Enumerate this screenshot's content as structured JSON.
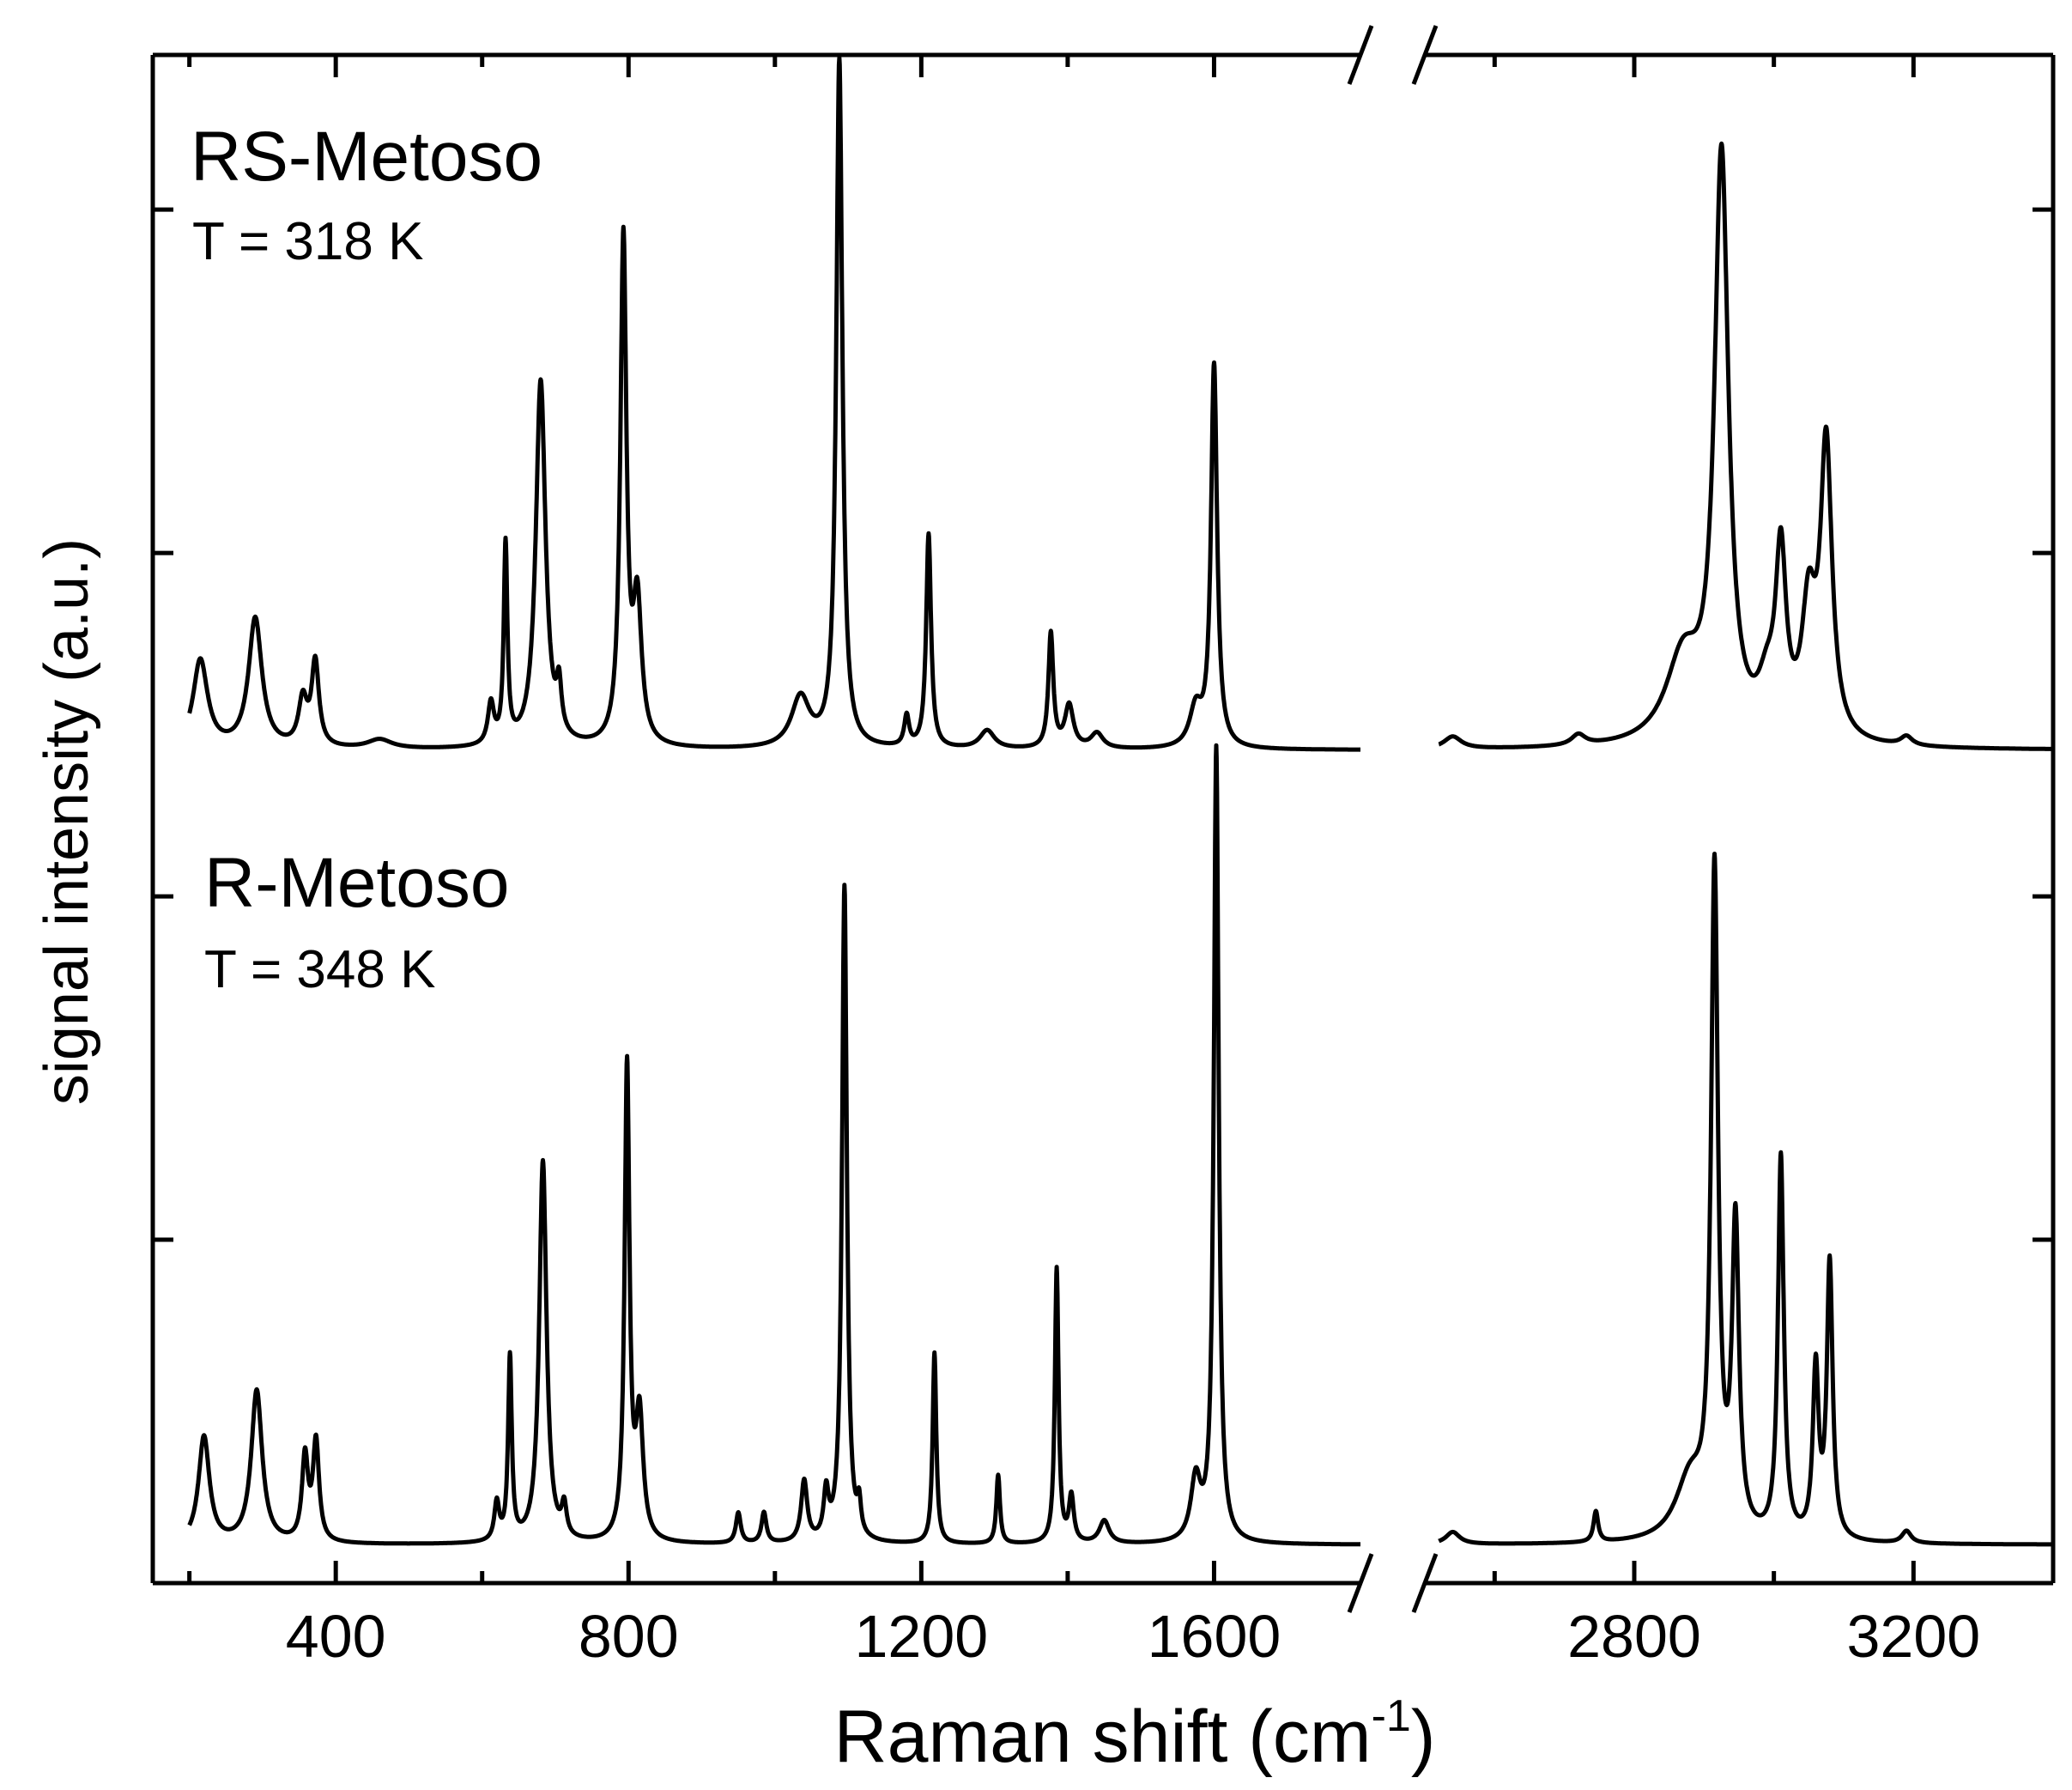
{
  "chart_data": {
    "type": "line",
    "xlabel": "Raman shift (cm",
    "xlabel_sup": "-1",
    "xlabel_end": ")",
    "ylabel": "signal intensity (a.u.)",
    "x_axis": {
      "broken": true,
      "segments": [
        {
          "xlim": [
            150,
            1800
          ]
        },
        {
          "xlim": [
            2500,
            3400
          ]
        }
      ],
      "ticks": [
        {
          "value": 400,
          "label": "400"
        },
        {
          "value": 800,
          "label": "800"
        },
        {
          "value": 1200,
          "label": "1200"
        },
        {
          "value": 1600,
          "label": "1600"
        },
        {
          "value": 2800,
          "label": "2800"
        },
        {
          "value": 3200,
          "label": "3200"
        }
      ],
      "minor_ticks": [
        200,
        600,
        1000,
        1400,
        2600,
        3000,
        3400
      ]
    },
    "y_axis": {
      "ylim": [
        0,
        1.0
      ],
      "ticks_shown": true,
      "tick_labels_shown": false
    },
    "grid": false,
    "legend": "none",
    "line_color": "#000000",
    "panel_labels": [
      {
        "name": "RS-Metoso",
        "temperature": "T = 318 K"
      },
      {
        "name": "R-Metoso",
        "temperature": "T = 348 K"
      }
    ],
    "series": [
      {
        "name": "RS-Metoso",
        "baseline": 0.545,
        "peaks": [
          {
            "x": 215,
            "h": 0.058,
            "w": 12
          },
          {
            "x": 290,
            "h": 0.085,
            "w": 11
          },
          {
            "x": 355,
            "h": 0.03,
            "w": 7
          },
          {
            "x": 372,
            "h": 0.055,
            "w": 6
          },
          {
            "x": 460,
            "h": 0.006,
            "w": 20
          },
          {
            "x": 612,
            "h": 0.027,
            "w": 5
          },
          {
            "x": 632,
            "h": 0.13,
            "w": 3
          },
          {
            "x": 680,
            "h": 0.24,
            "w": 8
          },
          {
            "x": 705,
            "h": 0.03,
            "w": 4
          },
          {
            "x": 793,
            "h": 0.33,
            "w": 5
          },
          {
            "x": 812,
            "h": 0.09,
            "w": 7
          },
          {
            "x": 1035,
            "h": 0.033,
            "w": 15
          },
          {
            "x": 1088,
            "h": 0.45,
            "w": 5
          },
          {
            "x": 1180,
            "h": 0.02,
            "w": 4
          },
          {
            "x": 1210,
            "h": 0.14,
            "w": 4
          },
          {
            "x": 1290,
            "h": 0.012,
            "w": 12
          },
          {
            "x": 1377,
            "h": 0.075,
            "w": 4
          },
          {
            "x": 1402,
            "h": 0.028,
            "w": 7
          },
          {
            "x": 1440,
            "h": 0.01,
            "w": 10
          },
          {
            "x": 1575,
            "h": 0.025,
            "w": 10
          },
          {
            "x": 1600,
            "h": 0.25,
            "w": 5
          },
          {
            "x": 2540,
            "h": 0.008,
            "w": 15
          },
          {
            "x": 2720,
            "h": 0.007,
            "w": 12
          },
          {
            "x": 2870,
            "h": 0.055,
            "w": 30
          },
          {
            "x": 2925,
            "h": 0.38,
            "w": 12
          },
          {
            "x": 2990,
            "h": 0.028,
            "w": 15
          },
          {
            "x": 3010,
            "h": 0.115,
            "w": 9
          },
          {
            "x": 3050,
            "h": 0.08,
            "w": 12
          },
          {
            "x": 3075,
            "h": 0.19,
            "w": 10
          },
          {
            "x": 3190,
            "h": 0.006,
            "w": 10
          }
        ]
      },
      {
        "name": "R-Metoso",
        "baseline": 0.025,
        "peaks": [
          {
            "x": 220,
            "h": 0.07,
            "w": 9
          },
          {
            "x": 292,
            "h": 0.1,
            "w": 9
          },
          {
            "x": 358,
            "h": 0.055,
            "w": 5
          },
          {
            "x": 373,
            "h": 0.065,
            "w": 5
          },
          {
            "x": 620,
            "h": 0.025,
            "w": 4
          },
          {
            "x": 638,
            "h": 0.12,
            "w": 3
          },
          {
            "x": 683,
            "h": 0.25,
            "w": 6
          },
          {
            "x": 712,
            "h": 0.02,
            "w": 4
          },
          {
            "x": 798,
            "h": 0.31,
            "w": 4
          },
          {
            "x": 815,
            "h": 0.08,
            "w": 6
          },
          {
            "x": 950,
            "h": 0.02,
            "w": 4
          },
          {
            "x": 985,
            "h": 0.02,
            "w": 4
          },
          {
            "x": 1040,
            "h": 0.04,
            "w": 5
          },
          {
            "x": 1070,
            "h": 0.03,
            "w": 4
          },
          {
            "x": 1095,
            "h": 0.43,
            "w": 4
          },
          {
            "x": 1115,
            "h": 0.02,
            "w": 3
          },
          {
            "x": 1218,
            "h": 0.125,
            "w": 3
          },
          {
            "x": 1305,
            "h": 0.045,
            "w": 3
          },
          {
            "x": 1385,
            "h": 0.18,
            "w": 3
          },
          {
            "x": 1405,
            "h": 0.03,
            "w": 4
          },
          {
            "x": 1450,
            "h": 0.015,
            "w": 8
          },
          {
            "x": 1575,
            "h": 0.04,
            "w": 8
          },
          {
            "x": 1603,
            "h": 0.52,
            "w": 4
          },
          {
            "x": 2540,
            "h": 0.008,
            "w": 12
          },
          {
            "x": 2745,
            "h": 0.02,
            "w": 4
          },
          {
            "x": 2880,
            "h": 0.04,
            "w": 25
          },
          {
            "x": 2915,
            "h": 0.43,
            "w": 6
          },
          {
            "x": 2945,
            "h": 0.2,
            "w": 6
          },
          {
            "x": 3010,
            "h": 0.25,
            "w": 5
          },
          {
            "x": 3060,
            "h": 0.11,
            "w": 5
          },
          {
            "x": 3080,
            "h": 0.18,
            "w": 5
          },
          {
            "x": 3190,
            "h": 0.008,
            "w": 8
          }
        ]
      }
    ]
  }
}
